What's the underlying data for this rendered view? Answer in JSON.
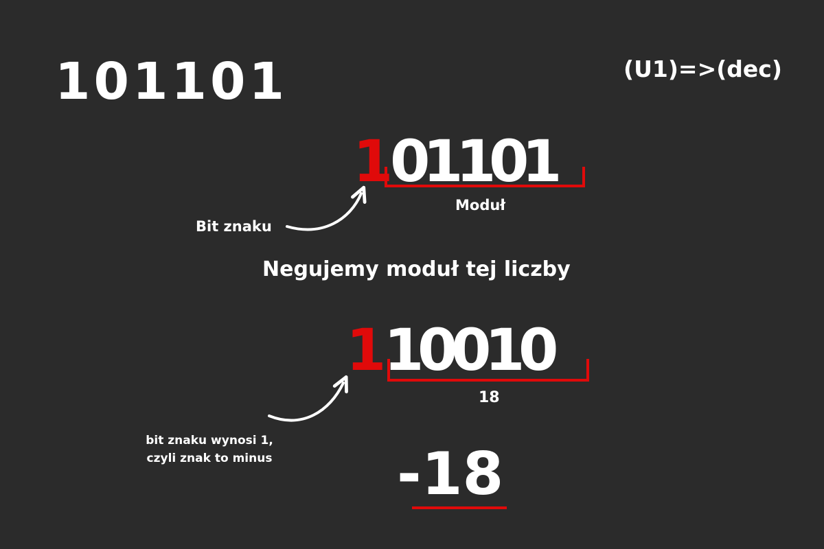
{
  "input_number": "101101",
  "conversion": "(U1)=>(dec)",
  "step1": {
    "sign_bit": "1",
    "magnitude_bits": [
      "0",
      "1",
      "1",
      "0",
      "1"
    ],
    "magnitude_label": "Moduł",
    "sign_label": "Bit znaku"
  },
  "step_instruction": "Negujemy moduł tej liczby",
  "step2": {
    "sign_bit": "1",
    "magnitude_bits": [
      "1",
      "0",
      "0",
      "1",
      "0"
    ],
    "magnitude_value": "18",
    "sign_note_line1": "bit znaku wynosi 1,",
    "sign_note_line2": "czyli znak to minus"
  },
  "result": "-18",
  "colors": {
    "background": "#2b2b2b",
    "accent": "#e00a0a",
    "text": "#ffffff"
  }
}
